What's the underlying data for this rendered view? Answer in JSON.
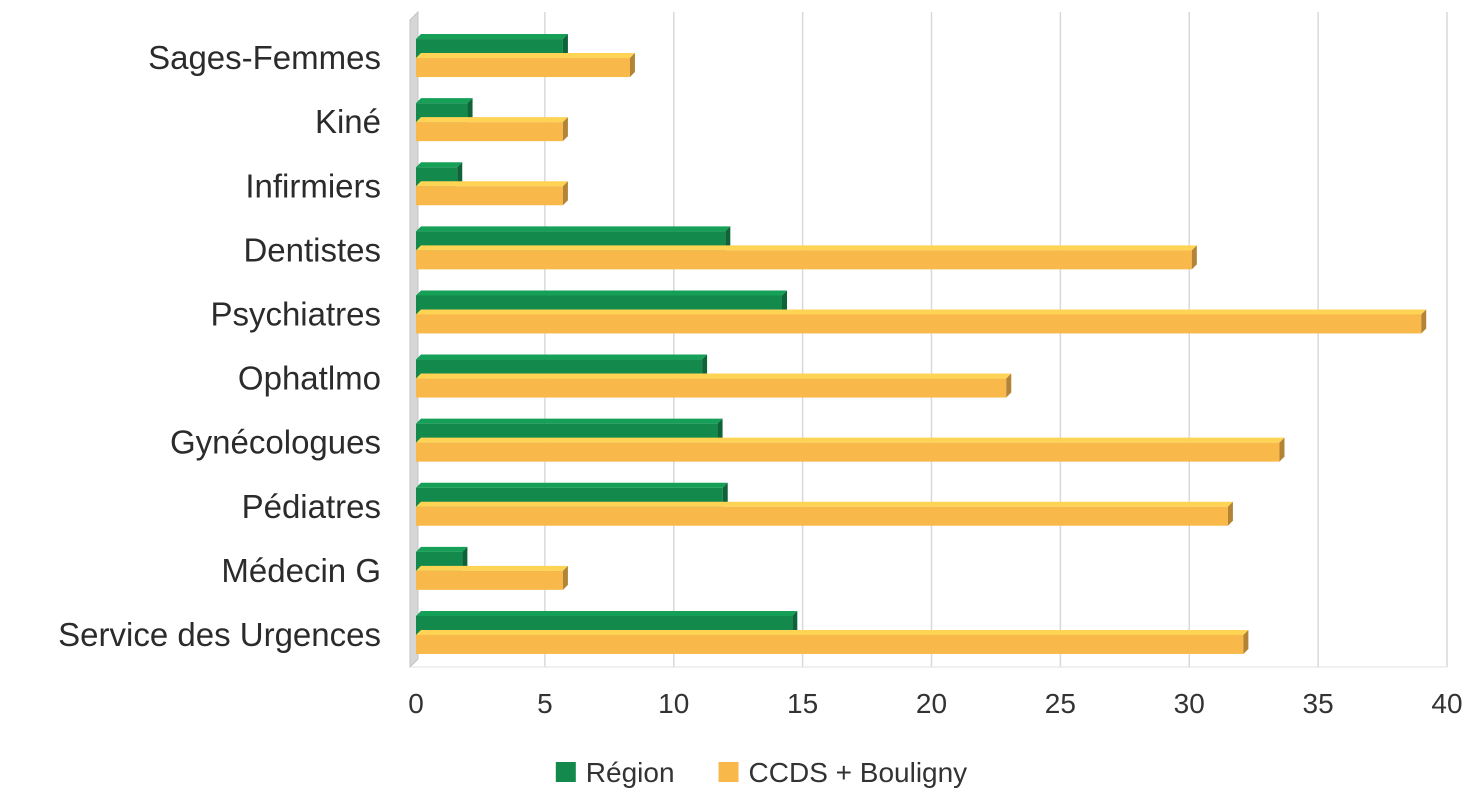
{
  "chart_data": {
    "type": "bar",
    "orientation": "horizontal",
    "categories": [
      "Sages-Femmes",
      "Kiné",
      "Infirmiers",
      "Dentistes",
      "Psychiatres",
      "Ophatlmo",
      "Gynécologues",
      "Pédiatres",
      "Médecin G",
      "Service des Urgences"
    ],
    "series": [
      {
        "name": "Région",
        "color": "#138a4c",
        "values": [
          5.7,
          2.0,
          1.6,
          12.0,
          14.2,
          11.1,
          11.7,
          11.9,
          1.8,
          14.6
        ]
      },
      {
        "name": "CCDS + Bouligny",
        "color": "#f9b84a",
        "values": [
          8.3,
          5.7,
          5.7,
          30.1,
          39.0,
          22.9,
          33.5,
          31.5,
          5.7,
          32.1
        ]
      }
    ],
    "xlim": [
      0,
      40
    ],
    "xticks": [
      "0",
      "5",
      "10",
      "15",
      "20",
      "25",
      "30",
      "35",
      "40"
    ],
    "grid": true,
    "legend_position": "bottom",
    "title": "",
    "xlabel": "",
    "ylabel": ""
  }
}
